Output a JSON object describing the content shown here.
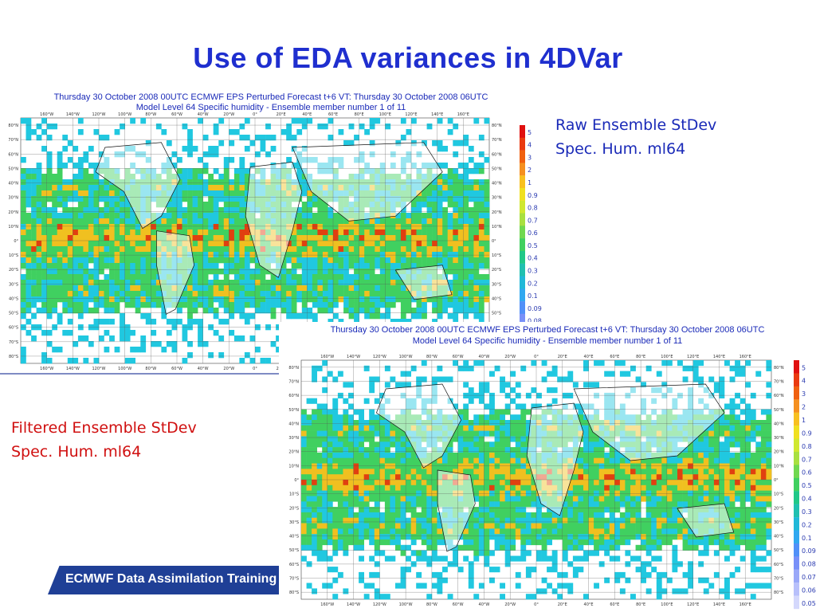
{
  "slide": {
    "title": "Use of EDA variances in 4DVar",
    "footer": "ECMWF Data Assimilation Training Course"
  },
  "captions": {
    "raw_line1": "Raw Ensemble StDev",
    "raw_line2": "Spec. Hum. ml64",
    "filtered_line1": "Filtered Ensemble StDev",
    "filtered_line2": "Spec. Hum. ml64"
  },
  "maps": {
    "raw": {
      "header_line1": "Thursday 30 October 2008 00UTC ECMWF   EPS Perturbed Forecast t+6 VT: Thursday 30 October 2008 06UTC",
      "header_line2": "Model Level 64 Specific humidity  - Ensemble member number 1 of  11"
    },
    "filtered": {
      "header_line1": "Thursday 30 October 2008 00UTC ECMWF   EPS Perturbed Forecast t+6 VT: Thursday 30 October 2008 06UTC",
      "header_line2": "Model Level 64 Specific humidity  - Ensemble member number 1 of  11"
    },
    "lon_labels": [
      "160°W",
      "140°W",
      "120°W",
      "100°W",
      "80°W",
      "60°W",
      "40°W",
      "20°W",
      "0°",
      "20°E",
      "40°E",
      "60°E",
      "80°E",
      "100°E",
      "120°E",
      "140°E",
      "160°E"
    ],
    "lat_labels": [
      "80°N",
      "70°N",
      "60°N",
      "50°N",
      "40°N",
      "30°N",
      "20°N",
      "10°N",
      "0°",
      "10°S",
      "20°S",
      "30°S",
      "40°S",
      "50°S",
      "60°S",
      "70°S",
      "80°S"
    ],
    "legend_labels": [
      "5",
      "4",
      "3",
      "2",
      "1",
      "0.9",
      "0.8",
      "0.7",
      "0.6",
      "0.5",
      "0.4",
      "0.3",
      "0.2",
      "0.1",
      "0.09",
      "0.08",
      "0.07",
      "0.06",
      "0.05"
    ],
    "legend_colors": [
      "#e01010",
      "#ea3a10",
      "#f06010",
      "#f59020",
      "#f8c020",
      "#f0e020",
      "#d0e830",
      "#a8e040",
      "#70d850",
      "#40d060",
      "#20c888",
      "#20c0b0",
      "#20b8d8",
      "#30a8f0",
      "#5090f8",
      "#7890f8",
      "#9aa8f8",
      "#b8c0fb",
      "#d4d8fc"
    ],
    "field_colors": {
      "land": "#ffffff",
      "low": "#20c8e0",
      "mid": "#40d060",
      "high": "#f0c020",
      "peak": "#e04010"
    }
  }
}
